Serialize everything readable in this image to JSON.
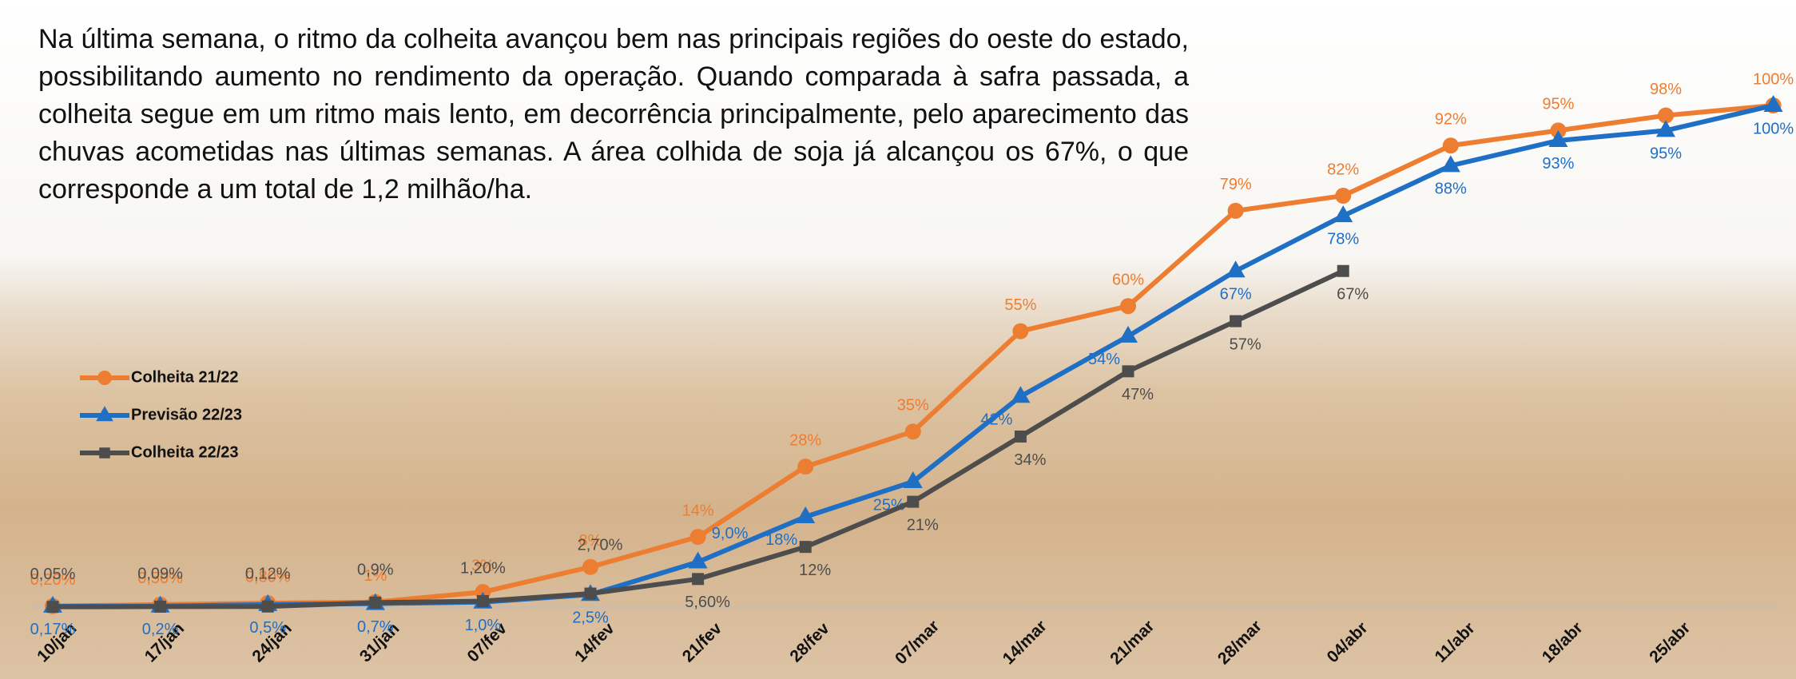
{
  "chart_data": {
    "type": "line",
    "annotation": "Na última semana, o ritmo da colheita avançou bem nas principais regiões do oeste do estado, possibilitando aumento no rendimento da operação. Quando comparada à safra passada, a colheita segue em um ritmo mais lento, em decorrência principalmente, pelo aparecimento das chuvas acometidas  nas últimas semanas. A área colhida de soja já alcançou os 67%, o que corresponde a um total de 1,2 milhão/ha.",
    "categories": [
      "10/jan",
      "17/jan",
      "24/jan",
      "31/jan",
      "07/fev",
      "14/fev",
      "21/fev",
      "28/fev",
      "07/mar",
      "14/mar",
      "21/mar",
      "28/mar",
      "04/abr",
      "11/abr",
      "18/abr",
      "25/abr",
      null
    ],
    "ylim": [
      0,
      100
    ],
    "legend": "left",
    "series": [
      {
        "name": "Colheita 21/22",
        "color": "#ed7d31",
        "marker": "circle",
        "values": [
          0.2,
          0.5,
          0.8,
          1,
          3,
          8,
          14,
          28,
          35,
          55,
          60,
          79,
          82,
          92,
          95,
          98,
          100
        ],
        "value_labels": [
          "0,20%",
          "0,50%",
          "0,80%",
          "1%",
          "3%",
          "8%",
          "14%",
          "28%",
          "35%",
          "55%",
          "60%",
          "79%",
          "82%",
          "92%",
          "95%",
          "98%",
          "100%"
        ]
      },
      {
        "name": "Previsão 22/23",
        "color": "#1f6fc5",
        "marker": "triangle",
        "values": [
          0.17,
          0.2,
          0.5,
          0.7,
          1.0,
          2.5,
          9.0,
          18,
          25,
          42,
          54,
          67,
          78,
          88,
          93,
          95,
          100
        ],
        "value_labels": [
          "0,17%",
          "0,2%",
          "0,5%",
          "0,7%",
          "1,0%",
          "2,5%",
          "9,0%",
          "18%",
          "25%",
          "42%",
          "54%",
          "67%",
          "78%",
          "88%",
          "93%",
          "95%",
          "100%"
        ]
      },
      {
        "name": "Colheita 22/23",
        "color": "#4d4d4d",
        "marker": "square",
        "values": [
          0.05,
          0.09,
          0.12,
          0.9,
          1.2,
          2.7,
          5.6,
          12,
          21,
          34,
          47,
          57,
          67,
          null,
          null,
          null,
          null
        ],
        "value_labels": [
          "0,05%",
          "0,09%",
          "0,12%",
          "0,9%",
          "1,20%",
          "2,70%",
          "5,60%",
          "12%",
          "21%",
          "34%",
          "47%",
          "57%",
          "67%",
          null,
          null,
          null,
          null
        ]
      }
    ]
  }
}
